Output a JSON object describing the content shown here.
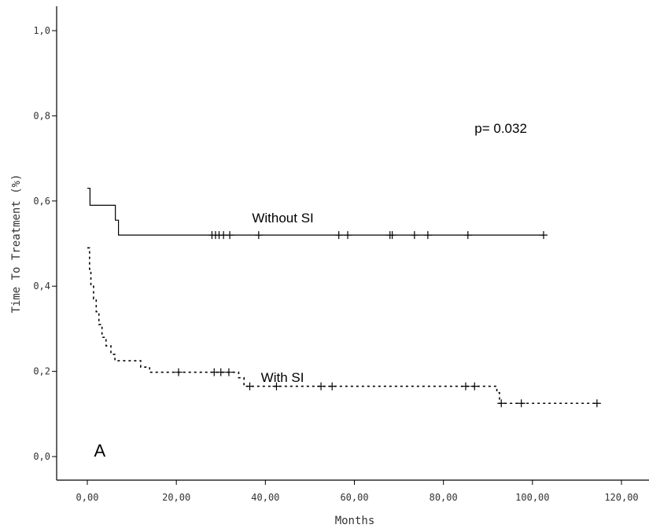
{
  "chart_data": {
    "type": "line",
    "subtype": "kaplan-meier step",
    "xlabel": "Months",
    "ylabel": "Time To Treatment (%)",
    "xlim": [
      -6,
      120
    ],
    "ylim": [
      -0.05,
      1.05
    ],
    "x_ticks": [
      0,
      20,
      40,
      60,
      80,
      100,
      120
    ],
    "x_tick_labels": [
      "0,00",
      "20,00",
      "40,00",
      "60,00",
      "80,00",
      "100,00",
      "120,00"
    ],
    "y_ticks": [
      0,
      0.2,
      0.4,
      0.6,
      0.8,
      1.0
    ],
    "y_tick_labels": [
      "0,0",
      "0,2",
      "0,4",
      "0,6",
      "0,8",
      "1,0"
    ],
    "grid": false,
    "annotations": [
      {
        "text": "p= 0.032",
        "x": 87,
        "y": 0.76
      },
      {
        "text": "Without SI",
        "x": 37,
        "y": 0.55
      },
      {
        "text": "With SI",
        "x": 39,
        "y": 0.175
      },
      {
        "text": "A",
        "x": 1.5,
        "y": 0.0
      }
    ],
    "series": [
      {
        "name": "Without SI",
        "line_style": "solid",
        "color": "#000000",
        "steps": [
          [
            0,
            0.63
          ],
          [
            0.6,
            0.59
          ],
          [
            6.3,
            0.555
          ],
          [
            7.0,
            0.52
          ],
          [
            102.5,
            0.52
          ]
        ],
        "censored": [
          28,
          28.8,
          29.6,
          30.6,
          32,
          38.5,
          56.5,
          58.5,
          68,
          68.5,
          73.5,
          76.5,
          85.5,
          102.5
        ]
      },
      {
        "name": "With SI",
        "line_style": "dotted",
        "color": "#000000",
        "steps": [
          [
            0,
            0.49
          ],
          [
            0.5,
            0.44
          ],
          [
            0.8,
            0.4
          ],
          [
            1.4,
            0.37
          ],
          [
            2.0,
            0.34
          ],
          [
            2.6,
            0.31
          ],
          [
            3.3,
            0.28
          ],
          [
            4.2,
            0.26
          ],
          [
            5.3,
            0.24
          ],
          [
            6.2,
            0.225
          ],
          [
            12.0,
            0.21
          ],
          [
            14.0,
            0.198
          ],
          [
            34.0,
            0.185
          ],
          [
            35.2,
            0.165
          ],
          [
            92.0,
            0.15
          ],
          [
            92.6,
            0.125
          ],
          [
            114.5,
            0.125
          ]
        ],
        "censored": [
          20.5,
          28.5,
          30,
          31.8,
          36.5,
          42.5,
          52.5,
          55,
          85,
          87,
          93,
          97.5,
          114.5
        ]
      }
    ]
  }
}
